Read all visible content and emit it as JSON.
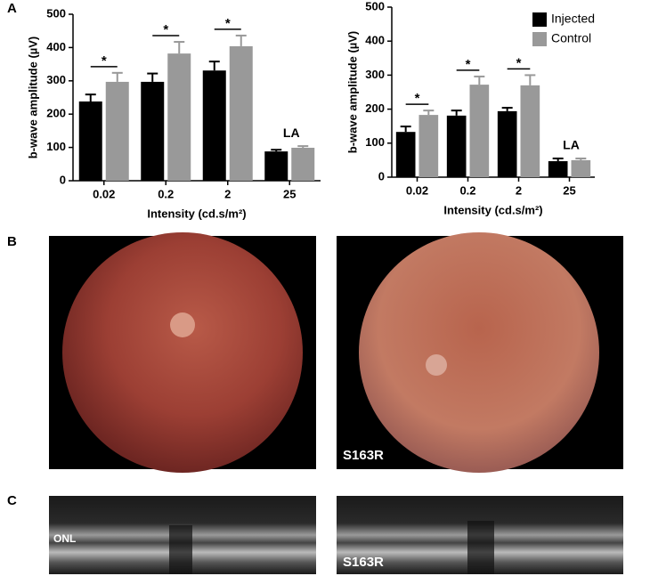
{
  "panel_labels": [
    "A",
    "B",
    "C"
  ],
  "image_labels": {
    "fundus_right": "S163R",
    "oct_left": "ONL",
    "oct_right": "S163R"
  },
  "chart_data": [
    {
      "type": "bar",
      "ylabel": "b-wave amplitude (µV)",
      "xlabel": "Intensity (cd.s/m²)",
      "categories": [
        "0.02",
        "0.2",
        "2",
        "25"
      ],
      "series": [
        {
          "color": "#000000",
          "values": [
            238,
            297,
            331,
            88
          ],
          "errors": [
            21,
            25,
            27,
            5
          ]
        },
        {
          "color": "#999999",
          "values": [
            297,
            382,
            404,
            99
          ],
          "errors": [
            27,
            35,
            32,
            5
          ]
        }
      ],
      "significance": [
        "*",
        "*",
        "*",
        null
      ],
      "annotation": "LA",
      "ylim": [
        0,
        500
      ],
      "yticks": [
        0,
        100,
        200,
        300,
        400,
        500
      ]
    },
    {
      "type": "bar",
      "ylabel": "b-wave amplitude (µV)",
      "xlabel": "Intensity (cd.s/m²)",
      "categories": [
        "0.02",
        "0.2",
        "2",
        "25"
      ],
      "series": [
        {
          "name": "Injected",
          "color": "#000000",
          "values": [
            133,
            181,
            194,
            47
          ],
          "errors": [
            16,
            15,
            10,
            8
          ]
        },
        {
          "name": "Control",
          "color": "#999999",
          "values": [
            183,
            272,
            270,
            50
          ],
          "errors": [
            13,
            24,
            30,
            5
          ]
        }
      ],
      "significance": [
        "*",
        "*",
        "*",
        null
      ],
      "annotation": "LA",
      "ylim": [
        0,
        500
      ],
      "yticks": [
        0,
        100,
        200,
        300,
        400,
        500
      ],
      "legend": "upper right"
    }
  ]
}
